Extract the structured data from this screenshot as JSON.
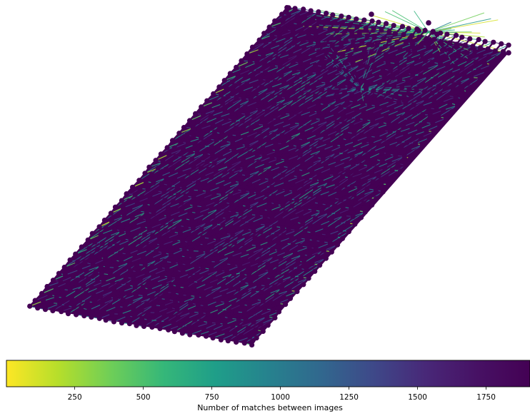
{
  "chart_data": {
    "type": "scatter",
    "title": "",
    "colorbar": {
      "label": "Number of matches between images",
      "range": [
        1,
        1910
      ],
      "ticks": [
        250,
        500,
        750,
        1000,
        1250,
        1500,
        1750
      ],
      "colormap": "viridis_r",
      "orientation": "horizontal",
      "placement": "bottom"
    },
    "node_color": "#440154",
    "grid": false,
    "axes_visible": false
  }
}
